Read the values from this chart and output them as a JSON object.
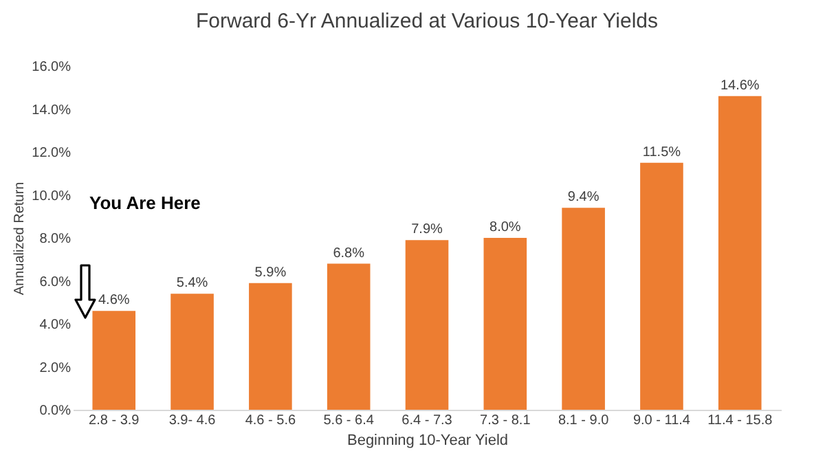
{
  "chart_data": {
    "type": "bar",
    "title": "Forward 6-Yr Annualized at Various 10-Year Yields",
    "xlabel": "Beginning 10-Year Yield",
    "ylabel": "Annualized Return",
    "categories": [
      "2.8 - 3.9",
      "3.9- 4.6",
      "4.6 - 5.6",
      "5.6 - 6.4",
      "6.4 - 7.3",
      "7.3 - 8.1",
      "8.1 - 9.0",
      "9.0 - 11.4",
      "11.4 - 15.8"
    ],
    "values": [
      4.6,
      5.4,
      5.9,
      6.8,
      7.9,
      8.0,
      9.4,
      11.5,
      14.6
    ],
    "value_labels": [
      "4.6%",
      "5.4%",
      "5.9%",
      "6.8%",
      "7.9%",
      "8.0%",
      "9.4%",
      "11.5%",
      "14.6%"
    ],
    "color": "#ed7d31",
    "ylim": [
      0,
      16
    ],
    "yticks": [
      {
        "value": 0,
        "label": "0.0%"
      },
      {
        "value": 2,
        "label": "2.0%"
      },
      {
        "value": 4,
        "label": "4.0%"
      },
      {
        "value": 6,
        "label": "6.0%"
      },
      {
        "value": 8,
        "label": "8.0%"
      },
      {
        "value": 10,
        "label": "10.0%"
      },
      {
        "value": 12,
        "label": "12.0%"
      },
      {
        "value": 14,
        "label": "14.0%"
      },
      {
        "value": 16,
        "label": "16.0%"
      }
    ],
    "annotations": [
      "You Are Here"
    ],
    "grid": false
  }
}
